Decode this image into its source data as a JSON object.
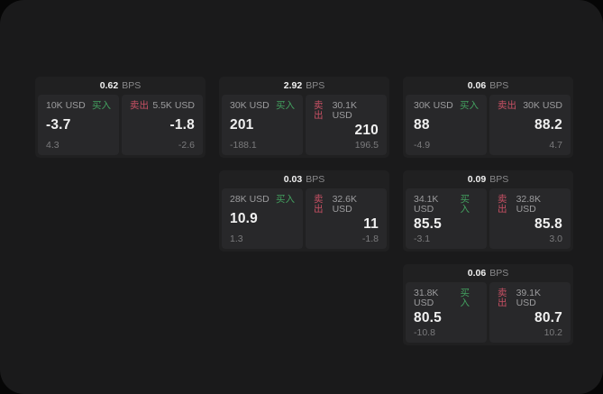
{
  "labels": {
    "bps_unit": "BPS",
    "buy": "买入",
    "sell": "卖出"
  },
  "colors": {
    "buy_green": "#43a05f",
    "sell_red": "#c75064",
    "window_bg": "#1a1a1b",
    "card_bg": "#202021",
    "panel_bg": "#28282a"
  },
  "cards": [
    {
      "grid": {
        "row": 1,
        "col": 1
      },
      "bps": "0.62",
      "buy": {
        "amount": "10K USD",
        "value": "-3.7",
        "sub": "4.3"
      },
      "sell": {
        "amount": "5.5K USD",
        "value": "-1.8",
        "sub": "-2.6"
      }
    },
    {
      "grid": {
        "row": 1,
        "col": 2
      },
      "bps": "2.92",
      "buy": {
        "amount": "30K USD",
        "value": "201",
        "sub": "-188.1"
      },
      "sell": {
        "amount": "30.1K USD",
        "value": "210",
        "sub": "196.5"
      }
    },
    {
      "grid": {
        "row": 1,
        "col": 3
      },
      "bps": "0.06",
      "buy": {
        "amount": "30K USD",
        "value": "88",
        "sub": "-4.9"
      },
      "sell": {
        "amount": "30K USD",
        "value": "88.2",
        "sub": "4.7"
      }
    },
    {
      "grid": {
        "row": 2,
        "col": 2
      },
      "bps": "0.03",
      "buy": {
        "amount": "28K USD",
        "value": "10.9",
        "sub": "1.3"
      },
      "sell": {
        "amount": "32.6K USD",
        "value": "11",
        "sub": "-1.8"
      }
    },
    {
      "grid": {
        "row": 2,
        "col": 3
      },
      "bps": "0.09",
      "buy": {
        "amount": "34.1K USD",
        "value": "85.5",
        "sub": "-3.1"
      },
      "sell": {
        "amount": "32.8K USD",
        "value": "85.8",
        "sub": "3.0"
      }
    },
    {
      "grid": {
        "row": 3,
        "col": 3
      },
      "bps": "0.06",
      "buy": {
        "amount": "31.8K USD",
        "value": "80.5",
        "sub": "-10.8"
      },
      "sell": {
        "amount": "39.1K USD",
        "value": "80.7",
        "sub": "10.2"
      }
    }
  ]
}
